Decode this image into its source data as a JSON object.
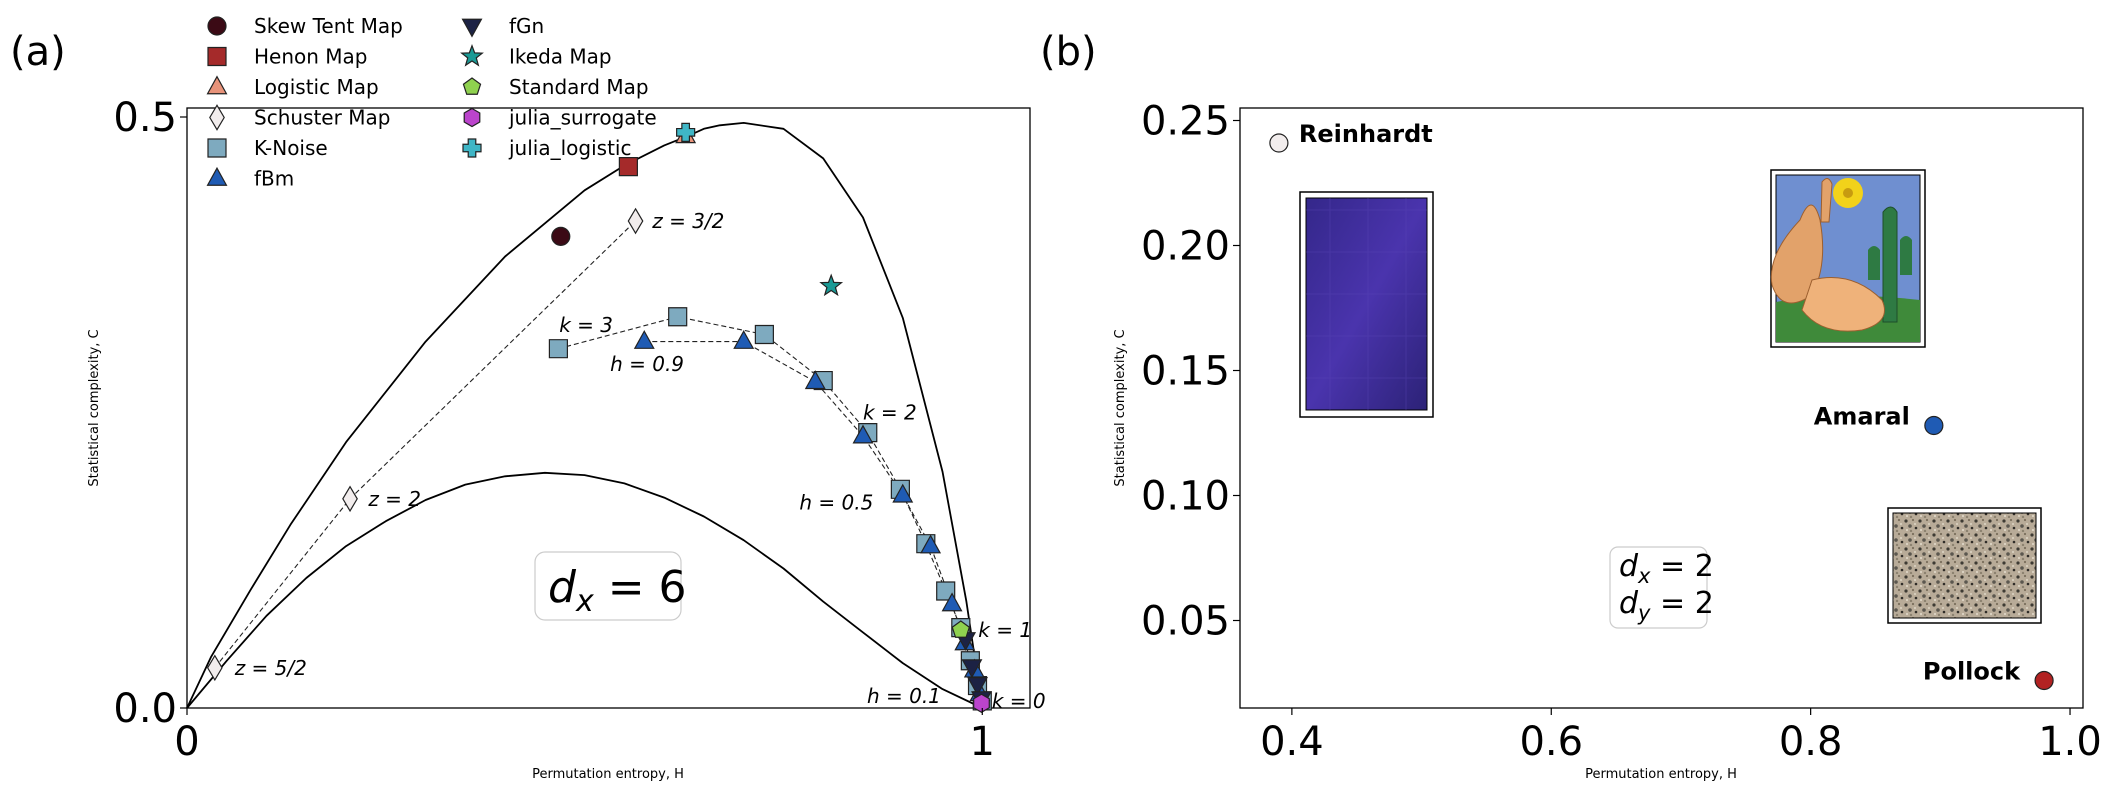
{
  "chart_data": [
    {
      "panel_label": "(a)",
      "type": "scatter",
      "xlabel": "Permutation entropy, H",
      "ylabel": "Statistical complexity, C",
      "xlim": [
        0,
        1.06
      ],
      "ylim": [
        0,
        0.5
      ],
      "xticks": [
        {
          "v": 0,
          "label": "0"
        },
        {
          "v": 1,
          "label": "1"
        }
      ],
      "yticks": [
        {
          "v": 0,
          "label": "0.0"
        },
        {
          "v": 0.5,
          "label": "0.5"
        }
      ],
      "grid": false,
      "legend_position": "top-left, outside the plot area, two columns",
      "annotation_box": {
        "text": "d_x = 6",
        "x": 0.53,
        "y": 0.105
      },
      "bounds": {
        "upper": [
          [
            0,
            0
          ],
          [
            0.03,
            0.043
          ],
          [
            0.08,
            0.1
          ],
          [
            0.13,
            0.155
          ],
          [
            0.2,
            0.225
          ],
          [
            0.3,
            0.31
          ],
          [
            0.4,
            0.382
          ],
          [
            0.5,
            0.438
          ],
          [
            0.55,
            0.459
          ],
          [
            0.6,
            0.476
          ],
          [
            0.63,
            0.484
          ],
          [
            0.65,
            0.49
          ],
          [
            0.67,
            0.493
          ],
          [
            0.7,
            0.495
          ],
          [
            0.75,
            0.49
          ],
          [
            0.8,
            0.465
          ],
          [
            0.85,
            0.415
          ],
          [
            0.9,
            0.33
          ],
          [
            0.95,
            0.2
          ],
          [
            0.98,
            0.09
          ],
          [
            1,
            0
          ]
        ],
        "lower": [
          [
            0,
            0
          ],
          [
            0.05,
            0.04
          ],
          [
            0.1,
            0.078
          ],
          [
            0.15,
            0.11
          ],
          [
            0.2,
            0.137
          ],
          [
            0.25,
            0.158
          ],
          [
            0.3,
            0.176
          ],
          [
            0.35,
            0.189
          ],
          [
            0.4,
            0.196
          ],
          [
            0.45,
            0.199
          ],
          [
            0.5,
            0.197
          ],
          [
            0.55,
            0.19
          ],
          [
            0.6,
            0.178
          ],
          [
            0.65,
            0.162
          ],
          [
            0.7,
            0.142
          ],
          [
            0.75,
            0.118
          ],
          [
            0.8,
            0.09
          ],
          [
            0.85,
            0.064
          ],
          [
            0.9,
            0.038
          ],
          [
            0.95,
            0.016
          ],
          [
            1,
            0
          ]
        ]
      },
      "series": [
        {
          "name": "Skew Tent Map",
          "marker": "circle",
          "color": "#3b0a15",
          "points": [
            [
              0.47,
              0.399
            ]
          ]
        },
        {
          "name": "Henon Map",
          "marker": "square",
          "color": "#a52a2a",
          "points": [
            [
              0.555,
              0.458
            ]
          ]
        },
        {
          "name": "Logistic Map",
          "marker": "triangle-up",
          "color": "#e8937a",
          "points": [
            [
              0.627,
              0.484
            ]
          ]
        },
        {
          "name": "Schuster Map",
          "marker": "diamond",
          "color": "#f2eded",
          "connected": true,
          "points": [
            [
              0.035,
              0.034
            ],
            [
              0.205,
              0.177
            ],
            [
              0.564,
              0.412
            ]
          ]
        },
        {
          "name": "K-Noise",
          "marker": "square",
          "color": "#7eaabf",
          "connected": true,
          "points": [
            [
              0.467,
              0.304
            ],
            [
              0.617,
              0.331
            ],
            [
              0.726,
              0.316
            ],
            [
              0.8,
              0.277
            ],
            [
              0.856,
              0.233
            ],
            [
              0.897,
              0.185
            ],
            [
              0.929,
              0.139
            ],
            [
              0.954,
              0.099
            ],
            [
              0.973,
              0.068
            ],
            [
              0.985,
              0.04
            ],
            [
              0.994,
              0.019
            ],
            [
              1.0,
              0.006
            ]
          ]
        },
        {
          "name": "fBm",
          "marker": "triangle-up",
          "color": "#1f5bb4",
          "connected": true,
          "points": [
            [
              0.575,
              0.31
            ],
            [
              0.7,
              0.31
            ],
            [
              0.79,
              0.276
            ],
            [
              0.85,
              0.23
            ],
            [
              0.9,
              0.18
            ],
            [
              0.935,
              0.137
            ],
            [
              0.962,
              0.088
            ],
            [
              0.978,
              0.055
            ],
            [
              0.99,
              0.032
            ],
            [
              0.997,
              0.012
            ]
          ]
        },
        {
          "name": "fGn",
          "marker": "triangle-down",
          "color": "#1c2244",
          "points": [
            [
              0.979,
              0.058
            ],
            [
              0.987,
              0.035
            ],
            [
              0.994,
              0.02
            ],
            [
              0.999,
              0.008
            ]
          ]
        },
        {
          "name": "Ikeda Map",
          "marker": "star",
          "color": "#1a9a95",
          "points": [
            [
              0.81,
              0.357
            ]
          ]
        },
        {
          "name": "Standard Map",
          "marker": "pentagon",
          "color": "#8fd14f",
          "points": [
            [
              0.973,
              0.066
            ]
          ]
        },
        {
          "name": "julia_surrogate",
          "marker": "hexagon",
          "color": "#bb44cc",
          "points": [
            [
              0.999,
              0.004
            ]
          ]
        },
        {
          "name": "julia_logistic",
          "marker": "plus",
          "color": "#3fb6c6",
          "points": [
            [
              0.627,
              0.487
            ]
          ]
        }
      ],
      "annotations": [
        {
          "text": "z = 3/2",
          "x": 0.585,
          "y": 0.412
        },
        {
          "text": "z = 2",
          "x": 0.228,
          "y": 0.177
        },
        {
          "text": "z = 5/2",
          "x": 0.06,
          "y": 0.034
        },
        {
          "text": "k = 3",
          "x": 0.468,
          "y": 0.324
        },
        {
          "text": "h = 0.9",
          "x": 0.532,
          "y": 0.291
        },
        {
          "text": "k = 2",
          "x": 0.85,
          "y": 0.25
        },
        {
          "text": "h = 0.5",
          "x": 0.77,
          "y": 0.174
        },
        {
          "text": "k = 1",
          "x": 0.995,
          "y": 0.066
        },
        {
          "text": "h = 0.1",
          "x": 0.855,
          "y": 0.01
        },
        {
          "text": "k = 0",
          "x": 1.012,
          "y": 0.006
        }
      ]
    },
    {
      "panel_label": "(b)",
      "type": "scatter",
      "xlabel": "Permutation entropy, H",
      "ylabel": "Statistical complexity, C",
      "xlim": [
        0.36,
        1.01
      ],
      "ylim": [
        0.015,
        0.255
      ],
      "xticks": [
        {
          "v": 0.4,
          "label": "0.4"
        },
        {
          "v": 0.6,
          "label": "0.6"
        },
        {
          "v": 0.8,
          "label": "0.8"
        },
        {
          "v": 1.0,
          "label": "1.0"
        }
      ],
      "yticks": [
        {
          "v": 0.05,
          "label": "0.05"
        },
        {
          "v": 0.1,
          "label": "0.10"
        },
        {
          "v": 0.15,
          "label": "0.15"
        },
        {
          "v": 0.2,
          "label": "0.20"
        },
        {
          "v": 0.25,
          "label": "0.25"
        }
      ],
      "grid": false,
      "annotation_box": {
        "lines": [
          "d_x = 2",
          "d_y = 2"
        ],
        "x": 0.685,
        "y": 0.06
      },
      "points": [
        {
          "name": "Reinhardt",
          "x": 0.39,
          "y": 0.241,
          "color": "#f2eded",
          "label_side": "right"
        },
        {
          "name": "Amaral",
          "x": 0.895,
          "y": 0.128,
          "color": "#1f5bb4",
          "label_side": "left"
        },
        {
          "name": "Pollock",
          "x": 0.98,
          "y": 0.026,
          "color": "#b22222",
          "label_side": "left"
        }
      ]
    }
  ]
}
